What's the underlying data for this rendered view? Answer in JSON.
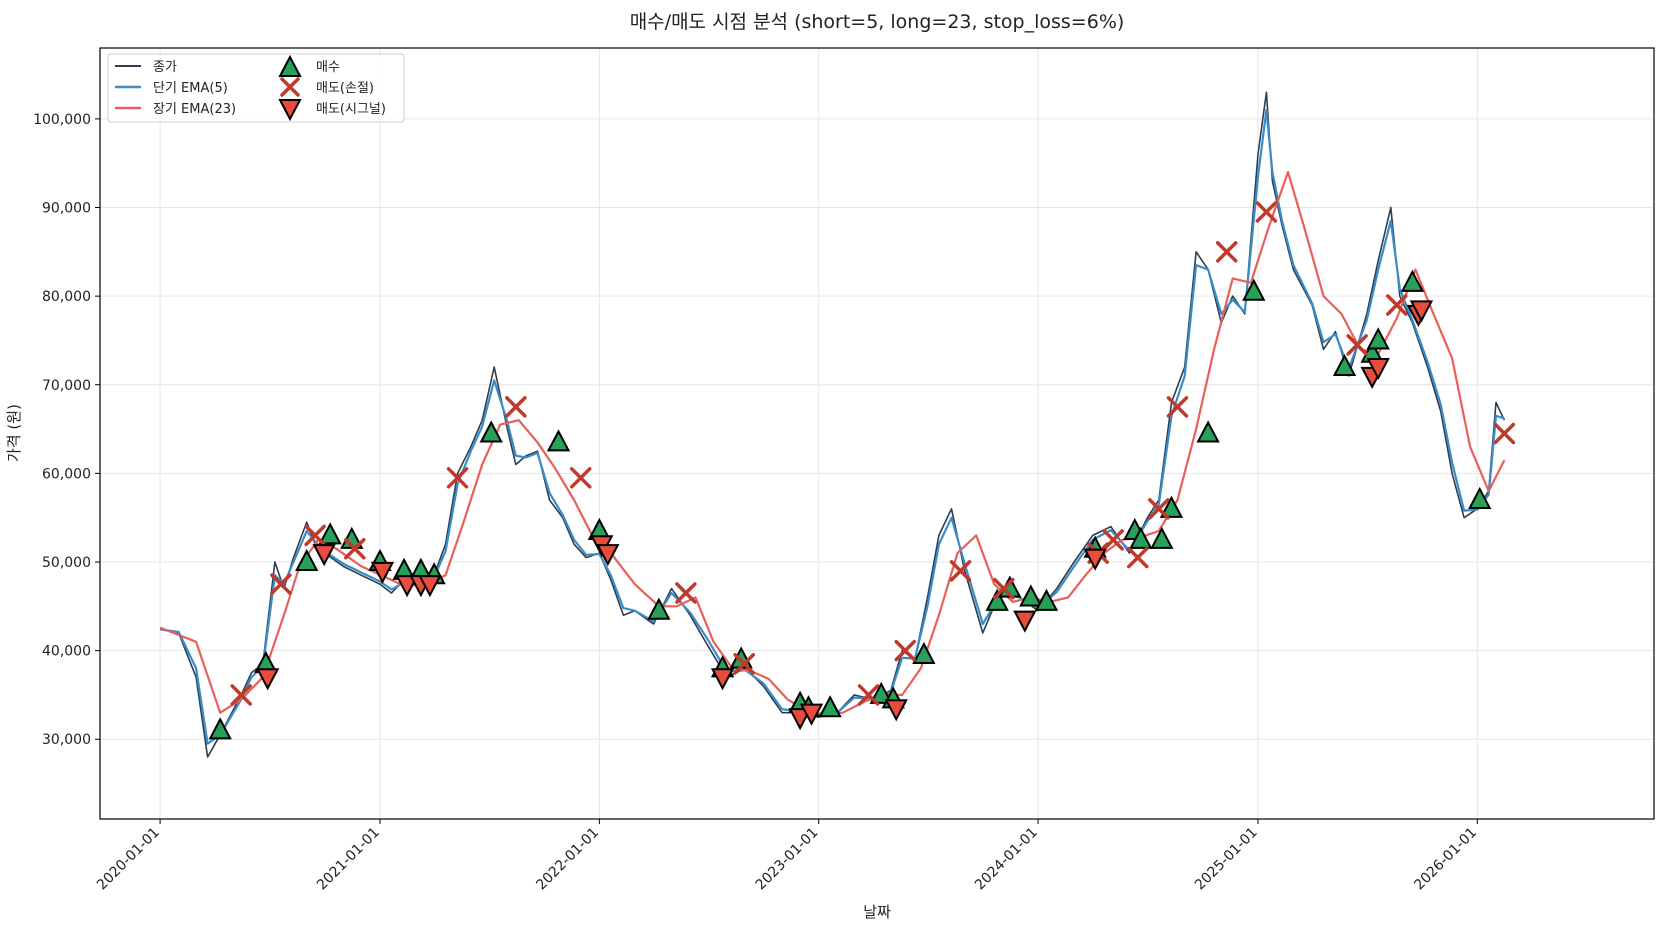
{
  "chart_data": {
    "type": "line",
    "title": "매수/매도 시점 분석 (short=5, long=23, stop_loss=6%)",
    "xlabel": "날짜",
    "ylabel": "가격 (원)",
    "x_ticks": [
      "2020-01-01",
      "2021-01-01",
      "2022-01-01",
      "2023-01-01",
      "2024-01-01",
      "2025-01-01",
      "2026-01-01"
    ],
    "y_ticks": [
      "30,000",
      "40,000",
      "50,000",
      "60,000",
      "70,000",
      "80,000",
      "90,000",
      "100,000"
    ],
    "xlim": [
      "2019-09-23",
      "2026-10-22"
    ],
    "ylim": [
      21000,
      108000
    ],
    "grid": true,
    "legend_position": "top-left",
    "colors": {
      "close": "#2c3e50",
      "ema_short": "#3a8cc8",
      "ema_long": "#e8605a",
      "buy": "#27a05a",
      "sell_stop": "#c0392b",
      "sell_signal": "#e74c3c"
    },
    "legend": {
      "close": "종가",
      "ema_short": "단기 EMA(5)",
      "ema_long": "장기 EMA(23)",
      "buy": "매수",
      "sell_stop": "매도(손절)",
      "sell_signal": "매도(시그널)"
    },
    "close_series": {
      "x": [
        "2020-01-01",
        "2020-02-01",
        "2020-03-01",
        "2020-03-20",
        "2020-04-10",
        "2020-05-15",
        "2020-06-01",
        "2020-06-20",
        "2020-07-10",
        "2020-07-25",
        "2020-08-10",
        "2020-09-01",
        "2020-09-15",
        "2020-10-01",
        "2020-11-01",
        "2020-12-01",
        "2021-01-01",
        "2021-01-20",
        "2021-02-10",
        "2021-03-01",
        "2021-04-01",
        "2021-04-20",
        "2021-05-10",
        "2021-06-01",
        "2021-06-20",
        "2021-07-10",
        "2021-08-01",
        "2021-08-15",
        "2021-09-01",
        "2021-09-20",
        "2021-10-10",
        "2021-11-01",
        "2021-11-20",
        "2021-12-10",
        "2022-01-01",
        "2022-01-20",
        "2022-02-10",
        "2022-03-01",
        "2022-04-01",
        "2022-05-01",
        "2022-06-01",
        "2022-07-01",
        "2022-08-01",
        "2022-09-01",
        "2022-10-01",
        "2022-11-01",
        "2022-12-01",
        "2023-01-01",
        "2023-02-01",
        "2023-03-01",
        "2023-04-01",
        "2023-05-01",
        "2023-05-20",
        "2023-06-10",
        "2023-07-01",
        "2023-07-20",
        "2023-08-10",
        "2023-09-01",
        "2023-10-01",
        "2023-11-01",
        "2023-12-01",
        "2024-01-01",
        "2024-02-01",
        "2024-03-01",
        "2024-04-01",
        "2024-05-01",
        "2024-06-01",
        "2024-07-01",
        "2024-07-20",
        "2024-08-10",
        "2024-09-01",
        "2024-09-20",
        "2024-10-10",
        "2024-11-01",
        "2024-11-20",
        "2024-12-10",
        "2025-01-01",
        "2025-01-15",
        "2025-01-25",
        "2025-02-10",
        "2025-03-01",
        "2025-04-01",
        "2025-04-20",
        "2025-05-10",
        "2025-06-01",
        "2025-07-01",
        "2025-07-20",
        "2025-08-10",
        "2025-08-25",
        "2025-09-15",
        "2025-10-10",
        "2025-11-01",
        "2025-11-20",
        "2025-12-10",
        "2026-01-01",
        "2026-01-20",
        "2026-02-01",
        "2026-02-15"
      ],
      "y": [
        42500,
        42000,
        37000,
        28000,
        30500,
        35000,
        37500,
        38500,
        50000,
        47000,
        50500,
        54500,
        52000,
        51000,
        49500,
        48500,
        47500,
        46500,
        48000,
        47500,
        48500,
        52000,
        60000,
        63000,
        66000,
        72000,
        65000,
        61000,
        62000,
        62500,
        57000,
        55000,
        52000,
        50500,
        51000,
        48000,
        44000,
        44500,
        43000,
        47000,
        44000,
        40500,
        37000,
        38000,
        36000,
        33000,
        33000,
        32500,
        33000,
        35000,
        34500,
        35500,
        40000,
        39000,
        46000,
        53000,
        56000,
        49000,
        42000,
        47000,
        46000,
        44500,
        47000,
        50000,
        53000,
        54000,
        51000,
        55000,
        57000,
        68000,
        72000,
        85000,
        83000,
        77000,
        80000,
        78000,
        96000,
        103000,
        93000,
        88000,
        83000,
        79000,
        74000,
        76000,
        71000,
        78000,
        84000,
        90000,
        80000,
        77000,
        72000,
        67000,
        60000,
        55000,
        56000,
        58000,
        68000,
        66000
      ]
    },
    "ema_short_series": {
      "x": [
        "2020-01-01",
        "2020-02-01",
        "2020-03-01",
        "2020-03-20",
        "2020-04-10",
        "2020-05-15",
        "2020-06-01",
        "2020-06-20",
        "2020-07-10",
        "2020-07-25",
        "2020-08-10",
        "2020-09-01",
        "2020-09-15",
        "2020-10-01",
        "2020-11-01",
        "2020-12-01",
        "2021-01-01",
        "2021-01-20",
        "2021-02-10",
        "2021-03-01",
        "2021-04-01",
        "2021-04-20",
        "2021-05-10",
        "2021-06-01",
        "2021-06-20",
        "2021-07-10",
        "2021-08-01",
        "2021-08-15",
        "2021-09-01",
        "2021-09-20",
        "2021-10-10",
        "2021-11-01",
        "2021-11-20",
        "2021-12-10",
        "2022-01-01",
        "2022-01-20",
        "2022-02-10",
        "2022-03-01",
        "2022-04-01",
        "2022-05-01",
        "2022-06-01",
        "2022-07-01",
        "2022-08-01",
        "2022-09-01",
        "2022-10-01",
        "2022-11-01",
        "2022-12-01",
        "2023-01-01",
        "2023-02-01",
        "2023-03-01",
        "2023-04-01",
        "2023-05-01",
        "2023-05-20",
        "2023-06-10",
        "2023-07-01",
        "2023-07-20",
        "2023-08-10",
        "2023-09-01",
        "2023-10-01",
        "2023-11-01",
        "2023-12-01",
        "2024-01-01",
        "2024-02-01",
        "2024-03-01",
        "2024-04-01",
        "2024-05-01",
        "2024-06-01",
        "2024-07-01",
        "2024-07-20",
        "2024-08-10",
        "2024-09-01",
        "2024-09-20",
        "2024-10-10",
        "2024-11-01",
        "2024-11-20",
        "2024-12-10",
        "2025-01-01",
        "2025-01-15",
        "2025-01-25",
        "2025-02-10",
        "2025-03-01",
        "2025-04-01",
        "2025-04-20",
        "2025-05-10",
        "2025-06-01",
        "2025-07-01",
        "2025-07-20",
        "2025-08-10",
        "2025-08-25",
        "2025-09-15",
        "2025-10-10",
        "2025-11-01",
        "2025-11-20",
        "2025-12-10",
        "2026-01-01",
        "2026-01-20",
        "2026-02-01",
        "2026-02-15"
      ],
      "y": [
        42400,
        42100,
        38000,
        29500,
        30500,
        34500,
        37000,
        38200,
        48500,
        47500,
        50000,
        53500,
        52300,
        51200,
        49800,
        48800,
        47800,
        46900,
        47700,
        47600,
        48300,
        51200,
        58800,
        62500,
        65300,
        70500,
        65800,
        62000,
        61800,
        62300,
        57800,
        55300,
        52500,
        50800,
        50900,
        48500,
        44800,
        44500,
        43300,
        46500,
        44300,
        41200,
        37600,
        37800,
        36300,
        33400,
        33100,
        32700,
        33000,
        34700,
        34600,
        35300,
        39200,
        39100,
        45000,
        52000,
        55000,
        49800,
        43000,
        46500,
        46000,
        44800,
        46600,
        49500,
        52500,
        53600,
        51300,
        54600,
        56500,
        66500,
        71000,
        83500,
        83000,
        78000,
        79600,
        78200,
        93500,
        101000,
        94000,
        88500,
        83500,
        79200,
        74800,
        75700,
        71800,
        77300,
        83000,
        88500,
        80800,
        77300,
        72600,
        67800,
        61200,
        55800,
        55900,
        57600,
        66500,
        66200
      ]
    },
    "ema_long_series": {
      "x": [
        "2020-01-01",
        "2020-03-01",
        "2020-04-10",
        "2020-05-15",
        "2020-06-20",
        "2020-07-25",
        "2020-08-20",
        "2020-09-20",
        "2020-10-20",
        "2020-12-01",
        "2021-01-10",
        "2021-02-10",
        "2021-03-20",
        "2021-04-20",
        "2021-05-20",
        "2021-06-20",
        "2021-07-20",
        "2021-08-20",
        "2021-09-20",
        "2021-10-20",
        "2021-11-20",
        "2021-12-20",
        "2022-01-20",
        "2022-03-01",
        "2022-04-10",
        "2022-05-10",
        "2022-06-10",
        "2022-07-10",
        "2022-08-10",
        "2022-09-10",
        "2022-10-10",
        "2022-11-10",
        "2022-12-10",
        "2023-01-10",
        "2023-02-10",
        "2023-03-20",
        "2023-04-20",
        "2023-05-20",
        "2023-06-20",
        "2023-07-20",
        "2023-08-20",
        "2023-09-20",
        "2023-10-20",
        "2023-11-20",
        "2023-12-20",
        "2024-01-20",
        "2024-02-20",
        "2024-03-20",
        "2024-04-20",
        "2024-05-20",
        "2024-06-20",
        "2024-07-20",
        "2024-08-20",
        "2024-09-20",
        "2024-10-20",
        "2024-11-20",
        "2024-12-20",
        "2025-01-20",
        "2025-02-20",
        "2025-03-20",
        "2025-04-20",
        "2025-05-20",
        "2025-06-20",
        "2025-07-20",
        "2025-08-20",
        "2025-09-20",
        "2025-10-20",
        "2025-11-20",
        "2025-12-20",
        "2026-01-20",
        "2026-02-15"
      ],
      "y": [
        42600,
        41000,
        33000,
        34500,
        37000,
        44000,
        49500,
        52500,
        51500,
        49500,
        48300,
        47300,
        47500,
        48500,
        54500,
        61000,
        65500,
        66000,
        63500,
        60500,
        57000,
        53000,
        51000,
        47500,
        45000,
        45000,
        46000,
        41000,
        38000,
        37700,
        36800,
        34500,
        33300,
        32800,
        33000,
        34300,
        35000,
        35000,
        38000,
        44000,
        51000,
        53000,
        47500,
        45500,
        46000,
        45500,
        46000,
        48500,
        51000,
        52500,
        52800,
        53500,
        57000,
        65000,
        74000,
        82000,
        81500,
        88000,
        94000,
        87500,
        80000,
        78000,
        74000,
        73500,
        77500,
        83000,
        78000,
        73000,
        63000,
        58000,
        61500
      ]
    },
    "buy_markers": {
      "x": [
        "2020-04-10",
        "2020-06-25",
        "2020-09-01",
        "2020-10-10",
        "2020-11-15",
        "2021-01-01",
        "2021-02-10",
        "2021-03-10",
        "2021-04-01",
        "2021-07-05",
        "2021-10-25",
        "2022-01-01",
        "2022-04-10",
        "2022-07-25",
        "2022-08-25",
        "2022-12-01",
        "2022-12-15",
        "2023-01-20",
        "2023-04-15",
        "2023-05-05",
        "2023-06-25",
        "2023-10-25",
        "2023-11-15",
        "2023-12-20",
        "2024-01-15",
        "2024-04-05",
        "2024-06-10",
        "2024-06-20",
        "2024-07-25",
        "2024-08-10",
        "2024-10-10",
        "2024-12-25",
        "2025-05-25",
        "2025-07-10",
        "2025-07-20",
        "2025-09-15",
        "2026-01-05"
      ],
      "y": [
        31000,
        38500,
        50000,
        53000,
        52500,
        50000,
        49000,
        49000,
        48500,
        64500,
        63500,
        53500,
        44500,
        38000,
        39000,
        34000,
        33500,
        33500,
        35000,
        34500,
        39500,
        45500,
        47000,
        46000,
        45500,
        51500,
        53500,
        52500,
        52500,
        56000,
        64500,
        80500,
        72000,
        73500,
        75000,
        81500,
        57000
      ]
    },
    "stop_loss_markers": {
      "x": [
        "2020-05-15",
        "2020-07-20",
        "2020-09-15",
        "2020-11-20",
        "2021-05-10",
        "2021-08-15",
        "2021-12-01",
        "2022-05-25",
        "2022-08-30",
        "2023-03-25",
        "2023-05-25",
        "2023-08-25",
        "2023-11-05",
        "2024-04-10",
        "2024-05-05",
        "2024-06-15",
        "2024-07-20",
        "2024-08-20",
        "2024-11-10",
        "2025-01-15",
        "2025-06-15",
        "2025-08-20",
        "2026-02-15"
      ],
      "y": [
        35000,
        47500,
        53000,
        51500,
        59500,
        67500,
        59500,
        46500,
        38500,
        35000,
        40000,
        49000,
        47000,
        51000,
        52500,
        50500,
        56000,
        67500,
        85000,
        89500,
        74500,
        79000,
        64500
      ]
    },
    "signal_sell_markers": {
      "x": [
        "2020-06-28",
        "2020-09-30",
        "2021-01-05",
        "2021-02-15",
        "2021-03-10",
        "2021-03-25",
        "2022-01-05",
        "2022-01-15",
        "2022-07-25",
        "2022-12-01",
        "2022-12-20",
        "2023-05-10",
        "2023-12-10",
        "2024-04-05",
        "2025-07-10",
        "2025-07-20",
        "2025-09-25",
        "2025-09-30"
      ],
      "y": [
        37000,
        51000,
        49000,
        47500,
        47500,
        47500,
        52000,
        51000,
        37000,
        32500,
        33000,
        33500,
        43500,
        50500,
        71000,
        72000,
        78000,
        78500
      ]
    }
  }
}
